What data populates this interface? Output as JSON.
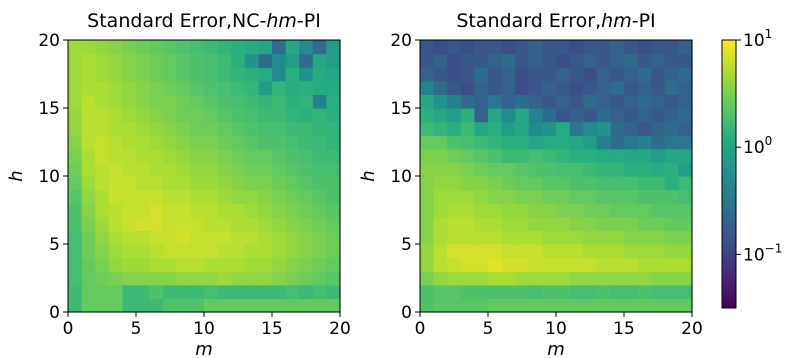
{
  "chart_data": [
    {
      "type": "heatmap",
      "title_parts": [
        "Standard Error,NC-",
        "hm",
        "-PI"
      ],
      "xlabel": "m",
      "ylabel": "h",
      "xlim": [
        0,
        20
      ],
      "ylim": [
        0,
        20
      ],
      "xticks": [
        "0",
        "5",
        "10",
        "15",
        "20"
      ],
      "yticks": [
        "0",
        "5",
        "10",
        "15",
        "20"
      ],
      "grid": false,
      "colorscale": "viridis",
      "log_scale": true,
      "description_rows_bottom_to_top": "log10 values for h = 0..19 (rows) and m = 0..19 (columns)",
      "values_log10": [
        [
          0.2,
          0.4,
          0.4,
          0.4,
          0.2,
          0.2,
          0.2,
          0.3,
          0.3,
          0.3,
          0.4,
          0.4,
          0.4,
          0.4,
          0.4,
          0.4,
          0.4,
          0.4,
          0.4,
          0.4
        ],
        [
          0.2,
          0.4,
          0.4,
          0.4,
          0.2,
          0.2,
          0.3,
          0.2,
          0.2,
          0.2,
          0.25,
          0.2,
          0.2,
          0.2,
          0.2,
          0.2,
          0.25,
          0.2,
          0.25,
          0.2
        ],
        [
          0.25,
          0.4,
          0.45,
          0.5,
          0.55,
          0.55,
          0.55,
          0.55,
          0.6,
          0.6,
          0.6,
          0.65,
          0.6,
          0.6,
          0.6,
          0.55,
          0.5,
          0.45,
          0.4,
          0.35
        ],
        [
          0.25,
          0.4,
          0.5,
          0.6,
          0.65,
          0.65,
          0.7,
          0.7,
          0.75,
          0.75,
          0.7,
          0.7,
          0.7,
          0.65,
          0.65,
          0.6,
          0.55,
          0.5,
          0.45,
          0.4
        ],
        [
          0.25,
          0.45,
          0.55,
          0.65,
          0.7,
          0.7,
          0.75,
          0.8,
          0.8,
          0.8,
          0.8,
          0.75,
          0.75,
          0.7,
          0.7,
          0.65,
          0.6,
          0.55,
          0.5,
          0.45
        ],
        [
          0.25,
          0.45,
          0.6,
          0.7,
          0.75,
          0.75,
          0.8,
          0.8,
          0.85,
          0.8,
          0.8,
          0.8,
          0.75,
          0.75,
          0.7,
          0.65,
          0.6,
          0.55,
          0.5,
          0.45
        ],
        [
          0.3,
          0.5,
          0.65,
          0.75,
          0.8,
          0.85,
          0.85,
          0.8,
          0.8,
          0.8,
          0.75,
          0.75,
          0.7,
          0.7,
          0.65,
          0.6,
          0.55,
          0.5,
          0.45,
          0.4
        ],
        [
          0.3,
          0.55,
          0.7,
          0.75,
          0.8,
          0.8,
          0.85,
          0.8,
          0.8,
          0.75,
          0.75,
          0.7,
          0.7,
          0.65,
          0.6,
          0.55,
          0.5,
          0.45,
          0.4,
          0.35
        ],
        [
          0.35,
          0.6,
          0.7,
          0.8,
          0.8,
          0.8,
          0.8,
          0.75,
          0.75,
          0.7,
          0.7,
          0.65,
          0.6,
          0.6,
          0.55,
          0.5,
          0.45,
          0.4,
          0.35,
          0.3
        ],
        [
          0.4,
          0.65,
          0.75,
          0.8,
          0.8,
          0.75,
          0.75,
          0.7,
          0.7,
          0.65,
          0.65,
          0.6,
          0.55,
          0.5,
          0.5,
          0.45,
          0.4,
          0.35,
          0.3,
          0.3
        ],
        [
          0.45,
          0.7,
          0.75,
          0.8,
          0.75,
          0.75,
          0.7,
          0.7,
          0.65,
          0.6,
          0.6,
          0.55,
          0.5,
          0.45,
          0.45,
          0.4,
          0.35,
          0.3,
          0.25,
          0.25
        ],
        [
          0.5,
          0.7,
          0.8,
          0.75,
          0.75,
          0.7,
          0.7,
          0.65,
          0.6,
          0.55,
          0.55,
          0.5,
          0.45,
          0.4,
          0.4,
          0.35,
          0.3,
          0.25,
          0.2,
          0.2
        ],
        [
          0.55,
          0.75,
          0.8,
          0.75,
          0.7,
          0.7,
          0.65,
          0.6,
          0.55,
          0.5,
          0.5,
          0.45,
          0.4,
          0.35,
          0.3,
          0.3,
          0.25,
          0.2,
          0.2,
          0.15
        ],
        [
          0.6,
          0.75,
          0.75,
          0.7,
          0.7,
          0.65,
          0.6,
          0.55,
          0.5,
          0.45,
          0.45,
          0.4,
          0.35,
          0.3,
          0.25,
          0.25,
          0.2,
          0.2,
          0.15,
          0.15
        ],
        [
          0.6,
          0.75,
          0.75,
          0.7,
          0.65,
          0.6,
          0.55,
          0.5,
          0.45,
          0.45,
          0.4,
          0.35,
          0.3,
          0.25,
          0.2,
          0.2,
          0.15,
          0.1,
          0.15,
          0.1
        ],
        [
          0.65,
          0.75,
          0.7,
          0.65,
          0.6,
          0.55,
          0.5,
          0.5,
          0.45,
          0.4,
          0.35,
          0.3,
          0.25,
          0.2,
          0.15,
          0.2,
          0.1,
          0.15,
          -0.4,
          0.1
        ],
        [
          0.65,
          0.7,
          0.7,
          0.65,
          0.6,
          0.55,
          0.5,
          0.45,
          0.4,
          0.35,
          0.3,
          0.25,
          0.2,
          0.15,
          -0.1,
          0.15,
          0.05,
          0.1,
          0.05,
          0.05
        ],
        [
          0.65,
          0.7,
          0.65,
          0.6,
          0.55,
          0.5,
          0.45,
          0.4,
          0.35,
          0.3,
          0.25,
          0.2,
          0.15,
          0.1,
          0.05,
          -0.3,
          0.1,
          -0.2,
          0.05,
          0.0
        ],
        [
          0.65,
          0.7,
          0.65,
          0.6,
          0.55,
          0.5,
          0.45,
          0.4,
          0.35,
          0.3,
          0.25,
          0.2,
          0.1,
          -0.2,
          -0.6,
          -0.3,
          -0.1,
          -0.6,
          0.0,
          -0.1
        ],
        [
          0.65,
          0.65,
          0.6,
          0.55,
          0.5,
          0.45,
          0.4,
          0.35,
          0.3,
          0.25,
          0.2,
          0.15,
          0.1,
          0.05,
          0.0,
          -0.6,
          0.0,
          -0.3,
          -0.6,
          -0.1
        ]
      ]
    },
    {
      "type": "heatmap",
      "title_parts": [
        "Standard Error,",
        "hm",
        "-PI"
      ],
      "xlabel": "m",
      "ylabel": "h",
      "xlim": [
        0,
        20
      ],
      "ylim": [
        0,
        20
      ],
      "xticks": [
        "0",
        "5",
        "10",
        "15",
        "20"
      ],
      "yticks": [
        "0",
        "5",
        "10",
        "15",
        "20"
      ],
      "grid": false,
      "colorscale": "viridis",
      "log_scale": true,
      "values_log10": [
        [
          0.3,
          0.35,
          0.35,
          0.35,
          0.35,
          0.4,
          0.4,
          0.4,
          0.4,
          0.4,
          0.4,
          0.4,
          0.4,
          0.4,
          0.4,
          0.4,
          0.4,
          0.4,
          0.4,
          0.4
        ],
        [
          0.3,
          0.35,
          0.35,
          0.3,
          0.3,
          0.3,
          0.3,
          0.3,
          0.25,
          0.3,
          0.3,
          0.25,
          0.25,
          0.3,
          0.25,
          0.25,
          0.3,
          0.25,
          0.25,
          0.25
        ],
        [
          0.5,
          0.6,
          0.65,
          0.65,
          0.65,
          0.7,
          0.7,
          0.65,
          0.65,
          0.65,
          0.65,
          0.6,
          0.6,
          0.6,
          0.6,
          0.6,
          0.6,
          0.55,
          0.55,
          0.55
        ],
        [
          0.6,
          0.75,
          0.8,
          0.85,
          0.85,
          0.9,
          0.85,
          0.85,
          0.8,
          0.8,
          0.8,
          0.8,
          0.8,
          0.75,
          0.75,
          0.75,
          0.7,
          0.7,
          0.7,
          0.7
        ],
        [
          0.6,
          0.75,
          0.85,
          0.85,
          0.85,
          0.85,
          0.8,
          0.8,
          0.8,
          0.75,
          0.75,
          0.75,
          0.7,
          0.7,
          0.7,
          0.65,
          0.65,
          0.65,
          0.6,
          0.6
        ],
        [
          0.55,
          0.7,
          0.75,
          0.75,
          0.75,
          0.75,
          0.7,
          0.7,
          0.7,
          0.65,
          0.65,
          0.65,
          0.6,
          0.6,
          0.6,
          0.55,
          0.55,
          0.55,
          0.5,
          0.5
        ],
        [
          0.55,
          0.7,
          0.75,
          0.75,
          0.7,
          0.7,
          0.65,
          0.65,
          0.6,
          0.6,
          0.6,
          0.55,
          0.55,
          0.5,
          0.5,
          0.5,
          0.45,
          0.45,
          0.4,
          0.4
        ],
        [
          0.55,
          0.65,
          0.7,
          0.7,
          0.65,
          0.65,
          0.6,
          0.6,
          0.55,
          0.55,
          0.5,
          0.5,
          0.45,
          0.45,
          0.4,
          0.4,
          0.4,
          0.35,
          0.35,
          0.35
        ],
        [
          0.55,
          0.65,
          0.65,
          0.65,
          0.6,
          0.55,
          0.55,
          0.5,
          0.5,
          0.45,
          0.45,
          0.4,
          0.4,
          0.35,
          0.35,
          0.35,
          0.3,
          0.3,
          0.3,
          0.25
        ],
        [
          0.55,
          0.6,
          0.6,
          0.55,
          0.55,
          0.5,
          0.45,
          0.4,
          0.4,
          0.35,
          0.35,
          0.3,
          0.3,
          0.25,
          0.25,
          0.25,
          0.2,
          0.2,
          0.1,
          0.2
        ],
        [
          0.55,
          0.55,
          0.55,
          0.5,
          0.45,
          0.4,
          0.4,
          0.35,
          0.3,
          0.3,
          0.25,
          0.25,
          0.2,
          0.15,
          0.15,
          0.1,
          0.1,
          0.05,
          0.1,
          -0.1
        ],
        [
          0.5,
          0.5,
          0.45,
          0.4,
          0.35,
          0.3,
          0.2,
          0.2,
          0.25,
          0.2,
          0.15,
          0.1,
          0.1,
          0.05,
          0.05,
          0.0,
          0.0,
          -0.1,
          0.0,
          0.0
        ],
        [
          0.4,
          0.4,
          0.3,
          0.25,
          0.2,
          0.15,
          0.1,
          0.1,
          0.0,
          0.05,
          0.05,
          0.0,
          -0.1,
          -0.4,
          -0.6,
          -0.5,
          -0.4,
          -0.6,
          -0.5,
          -0.5
        ],
        [
          0.2,
          0.15,
          0.1,
          0.2,
          0.0,
          0.1,
          -0.1,
          0.0,
          -0.3,
          -0.2,
          0.05,
          -0.5,
          -0.3,
          -0.2,
          -0.6,
          -0.7,
          -0.8,
          -0.7,
          -0.6,
          -0.7
        ],
        [
          0.1,
          0.0,
          -0.1,
          0.1,
          -0.7,
          0.0,
          -0.3,
          0.0,
          -0.4,
          -0.6,
          -0.8,
          -0.7,
          -0.8,
          -0.6,
          -0.7,
          -0.8,
          -0.7,
          -0.8,
          -0.7,
          -0.6
        ],
        [
          0.0,
          -0.2,
          -0.4,
          -0.6,
          -0.7,
          -0.5,
          -0.7,
          -0.6,
          -0.7,
          -0.8,
          -0.7,
          -0.8,
          -0.6,
          -0.7,
          -0.8,
          -0.7,
          -0.6,
          -0.7,
          -0.8,
          -0.7
        ],
        [
          -0.4,
          -0.6,
          -0.8,
          -0.9,
          -0.7,
          -0.8,
          -0.7,
          -0.9,
          -0.8,
          -0.7,
          -0.8,
          -0.9,
          -0.8,
          -0.7,
          -0.6,
          -0.8,
          -0.7,
          -0.8,
          -0.6,
          -0.7
        ],
        [
          -0.7,
          -0.8,
          -0.9,
          -0.8,
          -0.6,
          -0.8,
          -0.7,
          -0.9,
          -0.8,
          -0.8,
          -0.7,
          -0.8,
          -0.9,
          -0.7,
          -0.8,
          -0.7,
          -0.6,
          -0.8,
          -0.7,
          -0.6
        ],
        [
          -0.8,
          -0.7,
          -0.9,
          -0.8,
          -0.8,
          -0.7,
          -0.6,
          -0.8,
          -0.7,
          -0.8,
          -0.9,
          -0.8,
          -0.7,
          -0.8,
          -0.7,
          -0.6,
          -0.8,
          -0.7,
          -0.8,
          -0.8
        ],
        [
          -0.8,
          -0.9,
          -0.8,
          -0.9,
          -0.8,
          -0.8,
          -0.9,
          -0.8,
          -0.7,
          -0.8,
          -0.8,
          -0.9,
          -0.8,
          -0.8,
          -0.7,
          -0.8,
          -0.9,
          -0.8,
          -0.8,
          -0.7
        ]
      ]
    }
  ],
  "colorbar": {
    "scale": "log",
    "range_log10": [
      -1.5,
      1.0
    ],
    "ticks": [
      {
        "base": "10",
        "exp": "1",
        "log10": 1
      },
      {
        "base": "10",
        "exp": "0",
        "log10": 0
      },
      {
        "base": "10",
        "exp": "−1",
        "log10": -1
      }
    ]
  }
}
